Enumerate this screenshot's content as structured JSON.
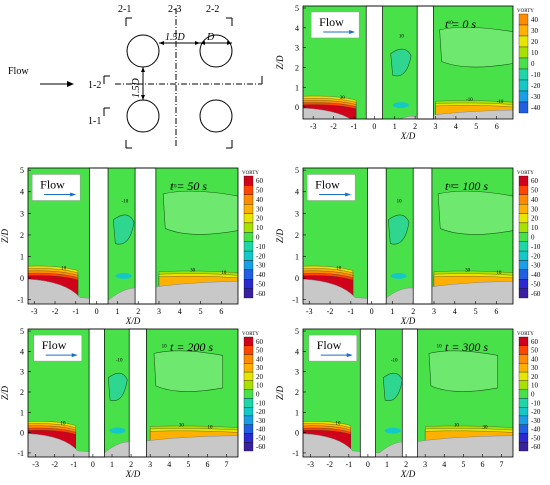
{
  "schematic": {
    "section_labels": [
      "2-1",
      "2-3",
      "2-2",
      "1-2",
      "1-1"
    ],
    "spacing_label_h": "1.5D",
    "spacing_label_v": "1.5D",
    "diameter_label": "D",
    "flow_label": "Flow"
  },
  "colorbar": {
    "title": "VORTY",
    "levels_full": [
      "60",
      "50",
      "40",
      "30",
      "20",
      "10",
      "0",
      "-10",
      "-20",
      "-30",
      "-40",
      "-50",
      "-60"
    ],
    "levels_small": [
      "40",
      "30",
      "20",
      "10",
      "0",
      "-10",
      "-20",
      "-30",
      "-40"
    ],
    "colors": [
      "#d0021b",
      "#ff4500",
      "#ff8c00",
      "#ffb000",
      "#e6e600",
      "#a8e000",
      "#49e149",
      "#1fd6a8",
      "#14c8c8",
      "#1a9ee6",
      "#1f5fe0",
      "#2a2ad0",
      "#3a20a0"
    ]
  },
  "panels": [
    {
      "id": "t0",
      "time_label": "t = 0 s",
      "flow_label": "Flow",
      "xticks": [
        "-3",
        "-2",
        "-1",
        "0",
        "1",
        "2",
        "3",
        "4",
        "5",
        "6"
      ],
      "zticks": [
        "5",
        "4",
        "3",
        "2",
        "1",
        "0"
      ],
      "xlabel": "X/D",
      "ylabel": "Z/D",
      "contour_labels": [
        "30",
        "10",
        "10",
        "-10",
        "-10"
      ]
    },
    {
      "id": "t50",
      "time_label": "t = 50 s",
      "flow_label": "Flow",
      "xticks": [
        "-3",
        "-2",
        "-1",
        "0",
        "1",
        "2",
        "3",
        "4",
        "5",
        "6"
      ],
      "zticks": [
        "5",
        "4",
        "3",
        "2",
        "1",
        "0",
        "-1"
      ],
      "xlabel": "X/D",
      "ylabel": "Z/D",
      "contour_labels": [
        "10",
        "10",
        "-10",
        "30",
        "10"
      ]
    },
    {
      "id": "t100",
      "time_label": "t = 100 s",
      "flow_label": "Flow",
      "xticks": [
        "-3",
        "-2",
        "-1",
        "0",
        "1",
        "2",
        "3",
        "4",
        "5",
        "6"
      ],
      "zticks": [
        "5",
        "4",
        "3",
        "2",
        "1",
        "0",
        "-1"
      ],
      "xlabel": "X/D",
      "ylabel": "Z/D",
      "contour_labels": [
        "10",
        "-10",
        "10",
        "30",
        "10"
      ]
    },
    {
      "id": "t200",
      "time_label": "t = 200 s",
      "flow_label": "Flow",
      "xticks": [
        "-3",
        "-2",
        "-1",
        "0",
        "1",
        "2",
        "3",
        "4",
        "5",
        "6",
        "7"
      ],
      "zticks": [
        "5",
        "4",
        "3",
        "2",
        "1",
        "0",
        "-1"
      ],
      "xlabel": "X/D",
      "ylabel": "Z/D",
      "contour_labels": [
        "10",
        "10",
        "-10",
        "30",
        "10"
      ]
    },
    {
      "id": "t300",
      "time_label": "t = 300 s",
      "flow_label": "Flow",
      "xticks": [
        "-3",
        "-2",
        "-1",
        "0",
        "1",
        "2",
        "3",
        "4",
        "5",
        "6",
        "7"
      ],
      "zticks": [
        "5",
        "4",
        "3",
        "2",
        "1",
        "0",
        "-1"
      ],
      "xlabel": "X/D",
      "ylabel": "Z/D",
      "contour_labels": [
        "10",
        "10",
        "-10",
        "10",
        "30"
      ]
    }
  ]
}
